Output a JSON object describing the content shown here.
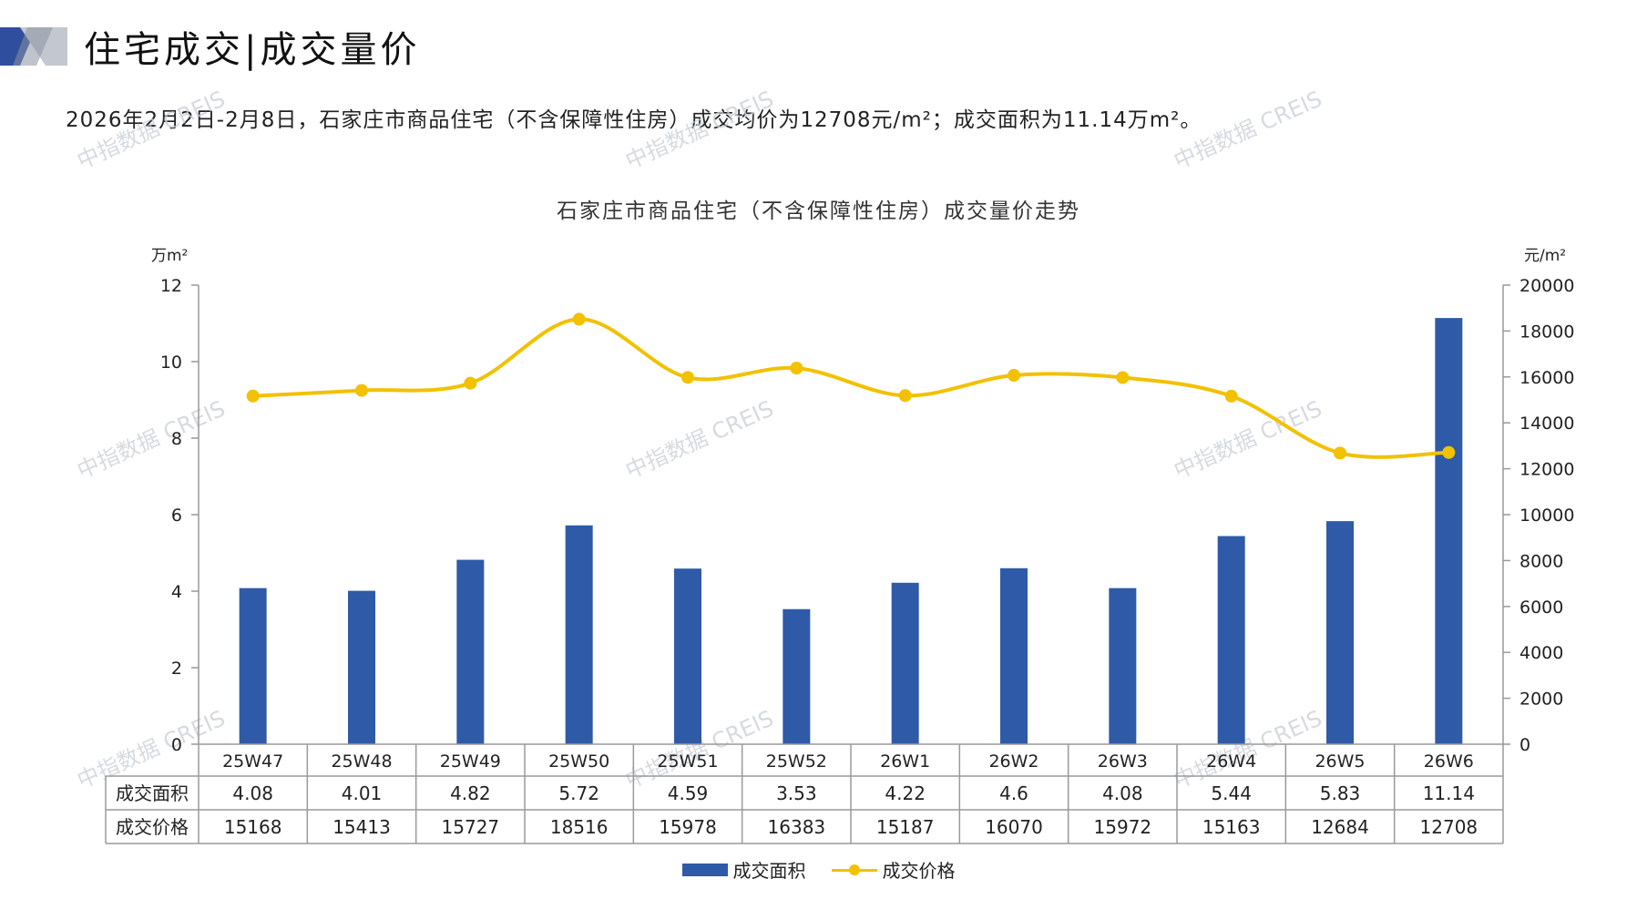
{
  "header": {
    "title": "住宅成交|成交量价",
    "summary": "2026年2月2日-2月8日，石家庄市商品住宅（不含保障性住房）成交均价为12708元/m²；成交面积为11.14万m²。"
  },
  "watermark": "中指数据 CREIS",
  "colors": {
    "bar": "#2e5aa8",
    "line": "#f2c100",
    "accent": "#2f4f9e"
  },
  "chart_data": {
    "type": "bar",
    "title": "石家庄市商品住宅（不含保障性住房）成交量价走势",
    "y_left_unit": "万m²",
    "y_right_unit": "元/m²",
    "y_left_range": [
      0,
      12
    ],
    "y_left_ticks": [
      "0",
      "2",
      "4",
      "6",
      "8",
      "10",
      "12"
    ],
    "y_right_range": [
      0,
      20000
    ],
    "y_right_ticks": [
      "0",
      "2000",
      "4000",
      "6000",
      "8000",
      "10000",
      "12000",
      "14000",
      "16000",
      "18000",
      "20000"
    ],
    "categories": [
      "25W47",
      "25W48",
      "25W49",
      "25W50",
      "25W51",
      "25W52",
      "26W1",
      "26W2",
      "26W3",
      "26W4",
      "26W5",
      "26W6"
    ],
    "series": [
      {
        "name": "成交面积",
        "type": "bar",
        "axis": "left",
        "values": [
          4.08,
          4.01,
          4.82,
          5.72,
          4.59,
          3.53,
          4.22,
          4.6,
          4.08,
          5.44,
          5.83,
          11.14
        ],
        "labels": [
          "4.08",
          "4.01",
          "4.82",
          "5.72",
          "4.59",
          "3.53",
          "4.22",
          "4.6",
          "4.08",
          "5.44",
          "5.83",
          "11.14"
        ]
      },
      {
        "name": "成交价格",
        "type": "line",
        "axis": "right",
        "values": [
          15168,
          15413,
          15727,
          18516,
          15978,
          16383,
          15187,
          16070,
          15972,
          15163,
          12684,
          12708
        ],
        "labels": [
          "15168",
          "15413",
          "15727",
          "18516",
          "15978",
          "16383",
          "15187",
          "16070",
          "15972",
          "15163",
          "12684",
          "12708"
        ]
      }
    ],
    "grid": false,
    "legend_position": "bottom"
  }
}
